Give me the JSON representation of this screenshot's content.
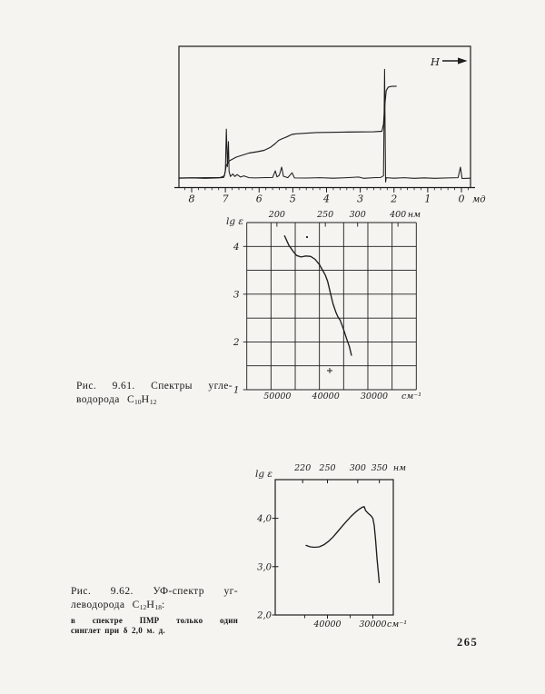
{
  "page_number": "265",
  "fig61": {
    "caption_l1": "Рис. 9.61. Спектры угле-",
    "caption_l2a": "водорода С",
    "caption_l2_sub1": "10",
    "caption_l2b": "Н",
    "caption_l2_sub2": "12",
    "caption_l2c": ""
  },
  "fig62": {
    "caption_l1": "Рис. 9.62. УФ-спектр уг-",
    "caption_l2a": "леводорода С",
    "caption_l2_sub1": "12",
    "caption_l2b": "Н",
    "caption_l2_sub2": "18",
    "caption_l2c": ":",
    "note_l1": "в спектре ПМР только один",
    "note_l2": "синглет при δ 2,0 м. д."
  },
  "chart_data": [
    {
      "type": "line",
      "name": "ПМР спектр углеводорода C10H12",
      "annotation_h": "Н",
      "x_axis": {
        "label": "мд",
        "ticks": [
          8,
          7,
          6,
          5,
          4,
          3,
          2,
          1,
          0
        ],
        "range": [
          8.38,
          -0.27
        ],
        "minor_step": 0.2
      },
      "y_axis": {
        "label": "",
        "range": [
          0,
          100
        ]
      },
      "peaks_ppm": [
        6.95,
        5.5,
        5.33,
        5.02,
        2.28,
        0.0
      ],
      "series": [
        {
          "name": "спектр",
          "points": [
            [
              8.38,
              0.6
            ],
            [
              8.0,
              0.9
            ],
            [
              7.6,
              0.5
            ],
            [
              7.2,
              0.9
            ],
            [
              7.05,
              1.2
            ],
            [
              7.0,
              6
            ],
            [
              6.97,
              40
            ],
            [
              6.94,
              10
            ],
            [
              6.91,
              30
            ],
            [
              6.89,
              6
            ],
            [
              6.85,
              2
            ],
            [
              6.78,
              4
            ],
            [
              6.72,
              2
            ],
            [
              6.65,
              3.5
            ],
            [
              6.55,
              1.5
            ],
            [
              6.45,
              2.5
            ],
            [
              6.3,
              1
            ],
            [
              6.1,
              0.8
            ],
            [
              5.9,
              1
            ],
            [
              5.6,
              1.2
            ],
            [
              5.52,
              6.5
            ],
            [
              5.47,
              1.6
            ],
            [
              5.4,
              3
            ],
            [
              5.33,
              9.5
            ],
            [
              5.28,
              2.2
            ],
            [
              5.15,
              1
            ],
            [
              5.02,
              5
            ],
            [
              4.95,
              0.8
            ],
            [
              4.6,
              0.7
            ],
            [
              4.2,
              1
            ],
            [
              3.8,
              0.6
            ],
            [
              3.4,
              1
            ],
            [
              3.05,
              1.5
            ],
            [
              2.9,
              0.5
            ],
            [
              2.6,
              1
            ],
            [
              2.4,
              1.2
            ],
            [
              2.31,
              2.5
            ],
            [
              2.28,
              88
            ],
            [
              2.25,
              -2.5
            ],
            [
              2.23,
              1
            ],
            [
              2.0,
              0.6
            ],
            [
              1.7,
              1
            ],
            [
              1.4,
              0.5
            ],
            [
              1.1,
              0.9
            ],
            [
              0.8,
              0.5
            ],
            [
              0.4,
              0.8
            ],
            [
              0.1,
              1
            ],
            [
              0.03,
              9.5
            ],
            [
              -0.02,
              0.4
            ],
            [
              -0.25,
              0.6
            ]
          ]
        },
        {
          "name": "интегральная кривая",
          "points": [
            [
              8.38,
              0.8
            ],
            [
              7.15,
              1.2
            ],
            [
              7.03,
              2.5
            ],
            [
              6.97,
              11
            ],
            [
              6.88,
              14.6
            ],
            [
              6.68,
              17.5
            ],
            [
              6.3,
              20.8
            ],
            [
              6.05,
              21.9
            ],
            [
              5.85,
              23
            ],
            [
              5.66,
              25.5
            ],
            [
              5.52,
              28.5
            ],
            [
              5.42,
              31
            ],
            [
              5.3,
              32.5
            ],
            [
              5.18,
              33.8
            ],
            [
              5.03,
              35.8
            ],
            [
              4.9,
              36.3
            ],
            [
              4.3,
              37.3
            ],
            [
              3.5,
              37.7
            ],
            [
              2.6,
              37.9
            ],
            [
              2.36,
              38.3
            ],
            [
              2.31,
              44
            ],
            [
              2.27,
              60
            ],
            [
              2.23,
              71
            ],
            [
              2.17,
              73.8
            ],
            [
              2.08,
              74.4
            ],
            [
              1.93,
              74.5
            ]
          ]
        }
      ]
    },
    {
      "type": "line",
      "name": "УФ-спектр углеводорода C10H12",
      "ylabel": "lg ε",
      "y_range": [
        1,
        4.5
      ],
      "y_ticks": [
        {
          "v": 4,
          "label": "4"
        },
        {
          "v": 3,
          "label": "3"
        },
        {
          "v": 2,
          "label": "2"
        },
        {
          "v": 1,
          "label": "1"
        }
      ],
      "x_range_cm": [
        55000,
        20000
      ],
      "x_top": {
        "unit": "нм",
        "ticks": [
          {
            "nm": "200",
            "cm": 50000
          },
          {
            "nm": "250",
            "cm": 40000
          },
          {
            "nm": "300",
            "cm": 33333
          },
          {
            "nm": "400",
            "cm": 25000
          }
        ]
      },
      "x_bottom": {
        "unit": "см⁻¹",
        "ticks": [
          50000,
          40000,
          30000
        ]
      },
      "grid": {
        "x_step": 5000,
        "y_step": 0.5
      },
      "series": [
        {
          "name": "lg ε",
          "points": [
            [
              47200,
              4.22
            ],
            [
              46300,
              4.02
            ],
            [
              45300,
              3.88
            ],
            [
              44700,
              3.81
            ],
            [
              43800,
              3.78
            ],
            [
              42800,
              3.8
            ],
            [
              41800,
              3.79
            ],
            [
              40900,
              3.73
            ],
            [
              40000,
              3.62
            ],
            [
              39400,
              3.51
            ],
            [
              38800,
              3.4
            ],
            [
              38300,
              3.27
            ],
            [
              37800,
              3.05
            ],
            [
              37200,
              2.8
            ],
            [
              36600,
              2.62
            ],
            [
              36200,
              2.53
            ],
            [
              35700,
              2.45
            ],
            [
              35000,
              2.26
            ],
            [
              34400,
              2.07
            ],
            [
              33800,
              1.9
            ],
            [
              33400,
              1.72
            ]
          ]
        }
      ]
    },
    {
      "type": "line",
      "name": "УФ-спектр углеводорода C12H18",
      "ylabel": "lg ε",
      "y_range": [
        2,
        4.8
      ],
      "y_ticks": [
        {
          "v": 4,
          "label": "4,0"
        },
        {
          "v": 3,
          "label": "3,0"
        },
        {
          "v": 2,
          "label": "2,0"
        }
      ],
      "x_range_cm": [
        51500,
        25500
      ],
      "x_top": {
        "unit": "нм",
        "ticks": [
          {
            "nm": "220",
            "cm": 45455
          },
          {
            "nm": "250",
            "cm": 40000
          },
          {
            "nm": "300",
            "cm": 33333
          },
          {
            "nm": "350",
            "cm": 28571
          }
        ]
      },
      "x_bottom": {
        "unit": "см⁻¹",
        "ticks": [
          40000,
          30000
        ],
        "minor_ticks": [
          45000,
          35000
        ]
      },
      "grid": null,
      "series": [
        {
          "name": "lg ε",
          "points": [
            [
              44700,
              3.44
            ],
            [
              43800,
              3.41
            ],
            [
              42800,
              3.4
            ],
            [
              41800,
              3.41
            ],
            [
              40800,
              3.45
            ],
            [
              39800,
              3.52
            ],
            [
              38800,
              3.61
            ],
            [
              37800,
              3.72
            ],
            [
              36800,
              3.83
            ],
            [
              35800,
              3.94
            ],
            [
              34800,
              4.04
            ],
            [
              33800,
              4.13
            ],
            [
              33000,
              4.19
            ],
            [
              32300,
              4.23
            ],
            [
              31900,
              4.24
            ],
            [
              31600,
              4.16
            ],
            [
              31000,
              4.1
            ],
            [
              30400,
              4.05
            ],
            [
              30000,
              4.0
            ],
            [
              29700,
              3.85
            ],
            [
              29400,
              3.55
            ],
            [
              29100,
              3.18
            ],
            [
              28800,
              2.88
            ],
            [
              28600,
              2.67
            ]
          ]
        }
      ]
    }
  ]
}
